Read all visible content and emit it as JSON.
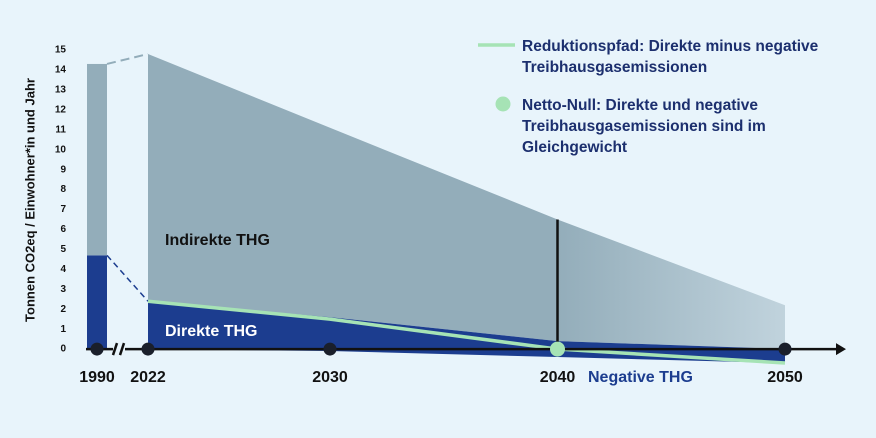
{
  "chart_data": {
    "type": "area",
    "y_label": "Tonnen CO2eq / Einwohner*in und Jahr",
    "x": [
      2022,
      2030,
      2040,
      2050
    ],
    "xticks": [
      1990,
      2022,
      2030,
      2040,
      2050
    ],
    "ylim": [
      -1,
      15
    ],
    "yticks": [
      0,
      1,
      2,
      3,
      4,
      5,
      6,
      7,
      8,
      9,
      10,
      11,
      12,
      13,
      14,
      15
    ],
    "baseline": {
      "x": 1990,
      "indirect": 9.6,
      "direct": 4.7
    },
    "series": [
      {
        "name": "Indirekte THG",
        "color": "#93adba",
        "values": [
          12.4,
          9.5,
          6.1,
          2.2
        ]
      },
      {
        "name": "Direkte THG",
        "color": "#1c3d8f",
        "values": [
          2.4,
          1.6,
          0.4,
          0
        ]
      },
      {
        "name": "Negative THG",
        "color": "#1c3d8f",
        "values": [
          0,
          -0.1,
          -0.4,
          -0.7
        ]
      },
      {
        "name": "Reduktionspfad: Direkte minus negative Treibhausgasemissionen",
        "color": "#a6e3b5",
        "type": "line",
        "values": [
          2.4,
          1.5,
          0,
          -0.7
        ]
      }
    ],
    "annotation": {
      "text": "Netto-Null: Direkte und negative Treibhausgasemissionen sind im Gleichgewicht",
      "x": 2040,
      "y": 0,
      "color": "#a6e3b5"
    }
  }
}
